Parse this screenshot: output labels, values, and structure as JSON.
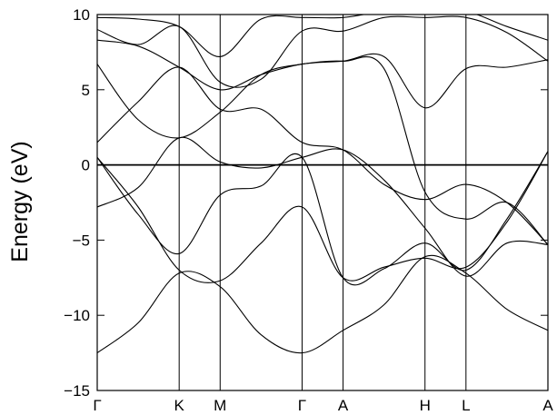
{
  "chart_data": {
    "type": "line",
    "title": "",
    "xlabel": "",
    "ylabel": "Energy (eV)",
    "ylim": [
      -15,
      10
    ],
    "y_ticks": [
      10,
      5,
      0,
      -5,
      -10,
      -15
    ],
    "y_tick_labels": [
      "10",
      "5",
      "0",
      "−5",
      "−10",
      "−15"
    ],
    "k_points": [
      "Γ",
      "K",
      "M",
      "Γ",
      "A",
      "H",
      "L",
      "A"
    ],
    "k_positions": [
      0,
      1,
      1.5,
      2.5,
      3.0,
      4.0,
      4.5,
      5.5
    ],
    "fermi_level": 0,
    "grid": false,
    "legend": "none",
    "series": [
      {
        "values": [
          [
            0,
            -12.5
          ],
          [
            0.5,
            -10.5
          ],
          [
            1.0,
            -7.2
          ],
          [
            1.5,
            -8.1
          ],
          [
            2.0,
            -11.3
          ],
          [
            2.5,
            -12.5
          ],
          [
            3.0,
            -11.0
          ],
          [
            3.5,
            -9.3
          ],
          [
            4.0,
            -6.1
          ],
          [
            4.5,
            -7.2
          ],
          [
            5.0,
            -9.6
          ],
          [
            5.5,
            -11.0
          ]
        ]
      },
      {
        "values": [
          [
            0,
            0.5
          ],
          [
            0.5,
            -2.8
          ],
          [
            1.0,
            -7.0
          ],
          [
            1.5,
            -7.7
          ],
          [
            2.0,
            -5.2
          ],
          [
            2.5,
            -2.8
          ],
          [
            3.0,
            -7.5
          ],
          [
            3.5,
            -6.8
          ],
          [
            4.0,
            -6.2
          ],
          [
            4.5,
            -6.8
          ],
          [
            5.0,
            -3.8
          ],
          [
            5.5,
            0.9
          ]
        ]
      },
      {
        "values": [
          [
            0,
            0.5
          ],
          [
            0.5,
            -3.3
          ],
          [
            1.0,
            -5.9
          ],
          [
            1.5,
            -2.0
          ],
          [
            2.0,
            -1.4
          ],
          [
            2.5,
            0.5
          ],
          [
            3.0,
            -7.5
          ],
          [
            3.5,
            -6.9
          ],
          [
            4.0,
            -5.2
          ],
          [
            4.5,
            -7.0
          ],
          [
            5.0,
            -3.6
          ],
          [
            5.5,
            0.9
          ]
        ]
      },
      {
        "values": [
          [
            0,
            -2.8
          ],
          [
            0.5,
            -1.5
          ],
          [
            1.0,
            1.8
          ],
          [
            1.5,
            0.2
          ],
          [
            2.0,
            -0.2
          ],
          [
            2.5,
            0.5
          ],
          [
            3.0,
            1.0
          ],
          [
            3.5,
            -1.0
          ],
          [
            4.0,
            -4.2
          ],
          [
            4.5,
            -7.4
          ],
          [
            5.0,
            -5.2
          ],
          [
            5.5,
            -5.3
          ]
        ]
      },
      {
        "values": [
          [
            0,
            1.5
          ],
          [
            0.5,
            4.2
          ],
          [
            1.0,
            6.5
          ],
          [
            1.5,
            3.7
          ],
          [
            2.0,
            3.7
          ],
          [
            2.5,
            1.5
          ],
          [
            3.0,
            1.0
          ],
          [
            3.5,
            -1.3
          ],
          [
            4.0,
            -2.3
          ],
          [
            4.5,
            -1.3
          ],
          [
            5.0,
            -2.5
          ],
          [
            5.5,
            -5.3
          ]
        ]
      },
      {
        "values": [
          [
            0,
            6.7
          ],
          [
            0.5,
            3.0
          ],
          [
            1.0,
            1.8
          ],
          [
            1.5,
            3.5
          ],
          [
            2.0,
            6.0
          ],
          [
            2.5,
            6.7
          ],
          [
            3.0,
            6.9
          ],
          [
            3.5,
            6.4
          ],
          [
            4.0,
            -1.8
          ],
          [
            4.5,
            -3.6
          ],
          [
            5.0,
            -2.5
          ],
          [
            5.5,
            -5.3
          ]
        ]
      },
      {
        "values": [
          [
            0,
            8.3
          ],
          [
            0.5,
            7.9
          ],
          [
            1.0,
            6.5
          ],
          [
            1.5,
            5.0
          ],
          [
            2.0,
            6.0
          ],
          [
            2.5,
            6.7
          ],
          [
            3.0,
            6.9
          ],
          [
            3.5,
            7.2
          ],
          [
            4.0,
            3.8
          ],
          [
            4.5,
            6.4
          ],
          [
            5.0,
            6.5
          ],
          [
            5.5,
            7.0
          ]
        ]
      },
      {
        "values": [
          [
            0,
            9.0
          ],
          [
            0.5,
            8.0
          ],
          [
            1.0,
            9.2
          ],
          [
            1.5,
            5.5
          ],
          [
            2.0,
            5.7
          ],
          [
            2.5,
            8.9
          ],
          [
            3.0,
            8.9
          ],
          [
            3.5,
            9.8
          ],
          [
            4.0,
            9.8
          ],
          [
            4.5,
            9.8
          ],
          [
            5.0,
            8.8
          ],
          [
            5.5,
            6.9
          ]
        ]
      },
      {
        "values": [
          [
            0,
            9.8
          ],
          [
            0.5,
            9.7
          ],
          [
            1.0,
            9.2
          ],
          [
            1.5,
            7.2
          ],
          [
            2.0,
            9.7
          ],
          [
            2.5,
            9.8
          ],
          [
            3.0,
            9.8
          ],
          [
            3.5,
            10.2
          ],
          [
            4.0,
            10.2
          ],
          [
            4.5,
            10.2
          ],
          [
            5.0,
            9.2
          ],
          [
            5.5,
            8.3
          ]
        ]
      }
    ]
  }
}
